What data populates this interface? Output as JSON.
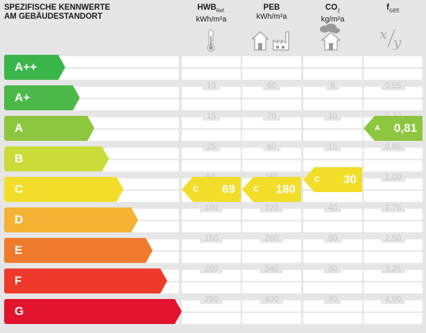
{
  "header": {
    "title_line1": "SPEZIFISCHE KENNWERTE",
    "title_line2": "AM GEBÄUDESTANDORT"
  },
  "columns": [
    {
      "key": "hwb",
      "label": "HWB",
      "sub": "Ref.",
      "unit": "kWh/m²a",
      "icon": "thermometer-icon"
    },
    {
      "key": "peb",
      "label": "PEB",
      "sub": "",
      "unit": "kWh/m²a",
      "icon": "house-factory-icon"
    },
    {
      "key": "co2",
      "label": "CO",
      "sub": "2",
      "unit": "kg/m²a",
      "icon": "house-cloud-icon"
    },
    {
      "key": "fgee",
      "label": "f",
      "sub": "GEE",
      "unit": "",
      "icon": "x-over-y-icon"
    }
  ],
  "classes": [
    {
      "label": "A++",
      "color": "#3ab54a"
    },
    {
      "label": "A+",
      "color": "#4cb847"
    },
    {
      "label": "A",
      "color": "#8dc63f"
    },
    {
      "label": "B",
      "color": "#cbdc3a"
    },
    {
      "label": "C",
      "color": "#f2de2a"
    },
    {
      "label": "D",
      "color": "#f5b335"
    },
    {
      "label": "E",
      "color": "#f07a2c"
    },
    {
      "label": "F",
      "color": "#ed3a2a"
    },
    {
      "label": "G",
      "color": "#e2142d"
    }
  ],
  "thresholds": {
    "hwb": [
      "10",
      "15",
      "25",
      "50",
      "100",
      "150",
      "200",
      "250"
    ],
    "peb": [
      "60",
      "70",
      "80",
      "160",
      "220",
      "280",
      "340",
      "400"
    ],
    "co2": [
      "8",
      "10",
      "15",
      "30",
      "40",
      "50",
      "60",
      "70"
    ],
    "fgee": [
      "0,55",
      "0,70",
      "0,85",
      "1,00",
      "1,75",
      "2,50",
      "3,25",
      "4,00"
    ]
  },
  "markers": {
    "hwb": {
      "class": "C",
      "value": "69"
    },
    "peb": {
      "class": "C",
      "value": "180"
    },
    "co2": {
      "class": "C",
      "value": "30"
    },
    "fgee": {
      "class": "A",
      "value": "0,81"
    }
  }
}
